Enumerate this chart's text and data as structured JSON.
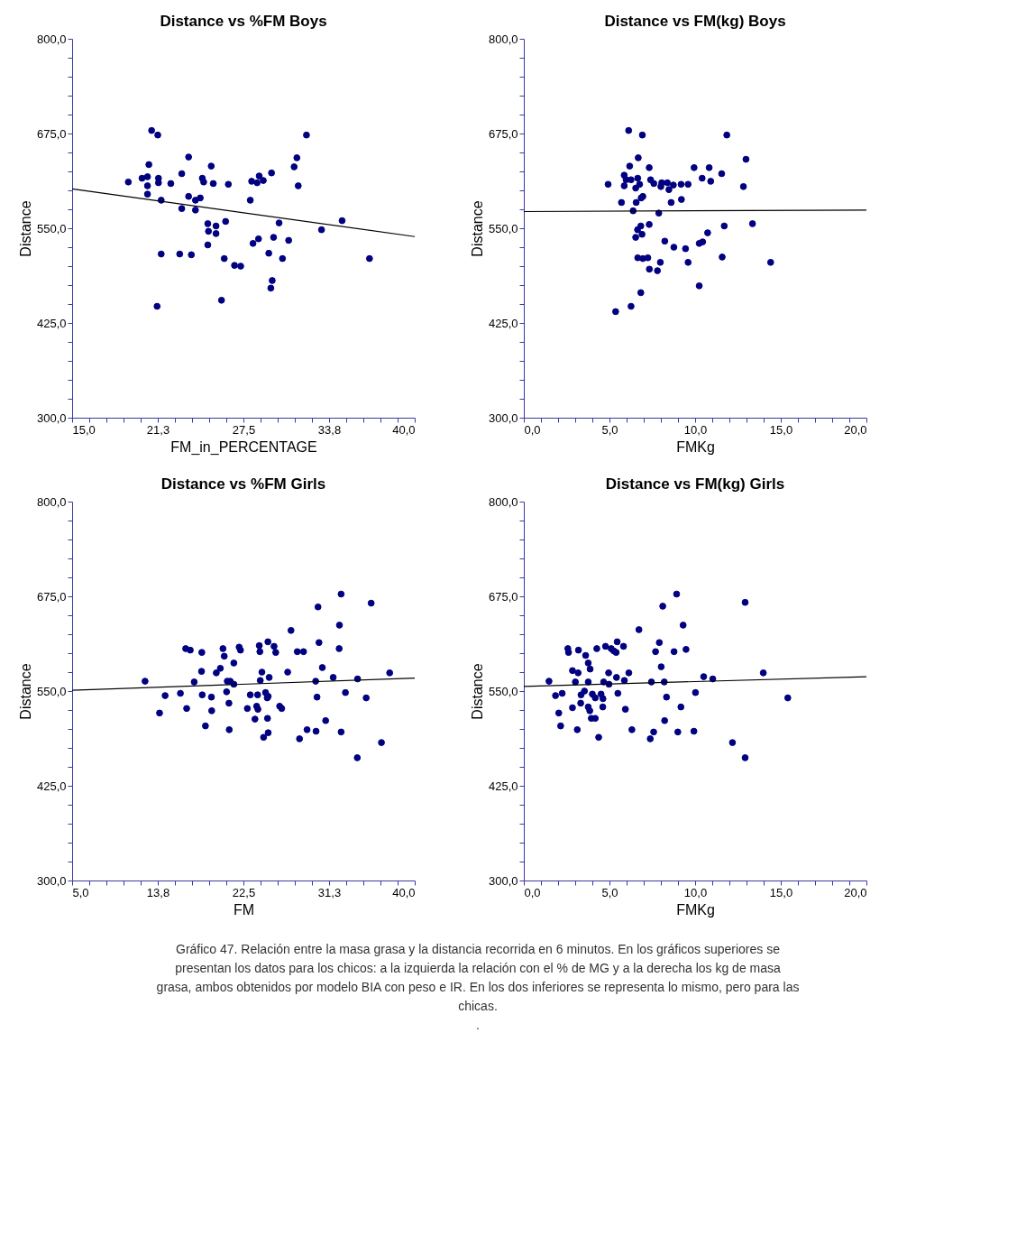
{
  "chart_data": [
    {
      "type": "scatter",
      "title": "Distance vs %FM Boys",
      "xlabel": "FM_in_PERCENTAGE",
      "ylabel": "Distance",
      "xlim": [
        15,
        40
      ],
      "ylim": [
        300,
        800
      ],
      "xticks": [
        {
          "value": 15,
          "label": "15,0"
        },
        {
          "value": 16.25,
          "label": null
        },
        {
          "value": 17.5,
          "label": null
        },
        {
          "value": 18.75,
          "label": null
        },
        {
          "value": 20,
          "label": null
        },
        {
          "value": 21.25,
          "label": "21,3"
        },
        {
          "value": 22.5,
          "label": null
        },
        {
          "value": 23.75,
          "label": null
        },
        {
          "value": 25,
          "label": null
        },
        {
          "value": 26.25,
          "label": null
        },
        {
          "value": 27.5,
          "label": "27,5"
        },
        {
          "value": 28.75,
          "label": null
        },
        {
          "value": 30,
          "label": null
        },
        {
          "value": 31.25,
          "label": null
        },
        {
          "value": 32.5,
          "label": null
        },
        {
          "value": 33.75,
          "label": "33,8"
        },
        {
          "value": 35,
          "label": null
        },
        {
          "value": 36.25,
          "label": null
        },
        {
          "value": 37.5,
          "label": null
        },
        {
          "value": 38.75,
          "label": null
        },
        {
          "value": 40,
          "label": "40,0"
        }
      ],
      "yticks": [
        {
          "value": 300,
          "label": "300,0"
        },
        {
          "value": 325,
          "label": null
        },
        {
          "value": 350,
          "label": null
        },
        {
          "value": 375,
          "label": null
        },
        {
          "value": 400,
          "label": null
        },
        {
          "value": 425,
          "label": "425,0"
        },
        {
          "value": 450,
          "label": null
        },
        {
          "value": 475,
          "label": null
        },
        {
          "value": 500,
          "label": null
        },
        {
          "value": 525,
          "label": null
        },
        {
          "value": 550,
          "label": "550,0"
        },
        {
          "value": 575,
          "label": null
        },
        {
          "value": 600,
          "label": null
        },
        {
          "value": 625,
          "label": null
        },
        {
          "value": 650,
          "label": null
        },
        {
          "value": 675,
          "label": "675,0"
        },
        {
          "value": 700,
          "label": null
        },
        {
          "value": 725,
          "label": null
        },
        {
          "value": 750,
          "label": null
        },
        {
          "value": 775,
          "label": null
        },
        {
          "value": 800,
          "label": "800,0"
        }
      ],
      "series": [
        {
          "marker": "circle",
          "color": "#000080",
          "x": [
            20.8,
            21.25,
            32.1,
            19.1,
            20.1,
            20.5,
            20.6,
            20.5,
            20.5,
            21.3,
            21.3,
            21.5,
            22.2,
            23.0,
            23.5,
            23.0,
            23.5,
            24.0,
            24.0,
            24.35,
            24.5,
            24.6,
            25.15,
            25.3,
            26.4,
            24.9,
            24.95,
            25.5,
            25.5,
            24.9,
            26.2,
            21.5,
            22.85,
            23.7,
            26.1,
            26.85,
            27.3,
            25.9,
            21.2,
            28.0,
            28.1,
            28.5,
            28.65,
            28.95,
            29.55,
            31.2,
            31.4,
            31.5,
            30.1,
            28.2,
            28.6,
            29.7,
            30.8,
            29.35,
            30.35,
            29.6,
            29.5,
            33.2,
            34.7,
            36.7
          ],
          "values": [
            679,
            673,
            673,
            611,
            616,
            618,
            634,
            606,
            595,
            616,
            610,
            587,
            609,
            622,
            644,
            576,
            592,
            574,
            587,
            590,
            616,
            611,
            632,
            609,
            608,
            556,
            546,
            553,
            543,
            528,
            559,
            516,
            516,
            515,
            510,
            501,
            500,
            455,
            447,
            587,
            612,
            610,
            619,
            613,
            623,
            631,
            643,
            606,
            557,
            530,
            536,
            538,
            534,
            517,
            510,
            481,
            471,
            548,
            560,
            510
          ]
        },
        {
          "type": "line",
          "color": "#000000",
          "x": [
            15,
            40
          ],
          "values": [
            602,
            539
          ]
        }
      ]
    },
    {
      "type": "scatter",
      "title": "Distance vs FM(kg) Boys",
      "xlabel": "FMKg",
      "ylabel": "Distance",
      "xlim": [
        0,
        20
      ],
      "ylim": [
        300,
        800
      ],
      "xticks": [
        {
          "value": 0,
          "label": "0,0"
        },
        {
          "value": 1,
          "label": null
        },
        {
          "value": 2,
          "label": null
        },
        {
          "value": 3,
          "label": null
        },
        {
          "value": 4,
          "label": null
        },
        {
          "value": 5,
          "label": "5,0"
        },
        {
          "value": 6,
          "label": null
        },
        {
          "value": 7,
          "label": null
        },
        {
          "value": 8,
          "label": null
        },
        {
          "value": 9,
          "label": null
        },
        {
          "value": 10,
          "label": "10,0"
        },
        {
          "value": 11,
          "label": null
        },
        {
          "value": 12,
          "label": null
        },
        {
          "value": 13,
          "label": null
        },
        {
          "value": 14,
          "label": null
        },
        {
          "value": 15,
          "label": "15,0"
        },
        {
          "value": 16,
          "label": null
        },
        {
          "value": 17,
          "label": null
        },
        {
          "value": 18,
          "label": null
        },
        {
          "value": 19,
          "label": null
        },
        {
          "value": 20,
          "label": "20,0"
        }
      ],
      "yticks": [
        {
          "value": 300,
          "label": "300,0"
        },
        {
          "value": 325,
          "label": null
        },
        {
          "value": 350,
          "label": null
        },
        {
          "value": 375,
          "label": null
        },
        {
          "value": 400,
          "label": null
        },
        {
          "value": 425,
          "label": "425,0"
        },
        {
          "value": 450,
          "label": null
        },
        {
          "value": 475,
          "label": null
        },
        {
          "value": 500,
          "label": null
        },
        {
          "value": 525,
          "label": null
        },
        {
          "value": 550,
          "label": "550,0"
        },
        {
          "value": 575,
          "label": null
        },
        {
          "value": 600,
          "label": null
        },
        {
          "value": 625,
          "label": null
        },
        {
          "value": 650,
          "label": null
        },
        {
          "value": 675,
          "label": "675,0"
        },
        {
          "value": 700,
          "label": null
        },
        {
          "value": 725,
          "label": null
        },
        {
          "value": 750,
          "label": null
        },
        {
          "value": 775,
          "label": null
        },
        {
          "value": 800,
          "label": "800,0"
        }
      ],
      "series": [
        {
          "marker": "circle",
          "color": "#000080",
          "x": [
            6.12,
            6.92,
            11.85,
            4.92,
            5.86,
            5.97,
            6.26,
            5.86,
            6.18,
            6.68,
            6.65,
            6.76,
            6.53,
            7.32,
            7.4,
            7.59,
            8.05,
            8.0,
            8.38,
            8.47,
            8.73,
            9.18,
            9.59,
            9.94,
            10.41,
            10.82,
            10.91,
            11.55,
            12.97,
            12.82,
            5.7,
            6.56,
            6.85,
            6.95,
            8.6,
            9.2,
            6.38,
            7.88,
            6.83,
            6.64,
            6.9,
            6.53,
            7.32,
            11.7,
            13.35,
            8.23,
            8.76,
            9.44,
            10.24,
            10.44,
            10.73,
            6.65,
            6.95,
            7.24,
            7.97,
            7.33,
            7.8,
            9.59,
            11.58,
            14.41,
            10.24,
            6.83,
            6.26,
            5.36
          ],
          "values": [
            679,
            673,
            673,
            608,
            620,
            614,
            614,
            606,
            632,
            643,
            616,
            608,
            603,
            630,
            614,
            609,
            610,
            605,
            610,
            601,
            607,
            608,
            608,
            630,
            616,
            630,
            612,
            622,
            641,
            605,
            584,
            584,
            590,
            592,
            584,
            588,
            573,
            570,
            553,
            548,
            542,
            538,
            555,
            553,
            556,
            533,
            525,
            523,
            530,
            532,
            544,
            511,
            510,
            511,
            505,
            496,
            494,
            505,
            512,
            505,
            474,
            465,
            447,
            440
          ]
        },
        {
          "type": "line",
          "color": "#000000",
          "x": [
            0,
            20
          ],
          "values": [
            572,
            574
          ]
        }
      ]
    },
    {
      "type": "scatter",
      "title": "Distance vs %FM Girls",
      "xlabel": "FM",
      "ylabel": "Distance",
      "xlim": [
        5,
        40
      ],
      "ylim": [
        300,
        800
      ],
      "xticks": [
        {
          "value": 5,
          "label": "5,0"
        },
        {
          "value": 6.75,
          "label": null
        },
        {
          "value": 8.5,
          "label": null
        },
        {
          "value": 10.25,
          "label": null
        },
        {
          "value": 12,
          "label": null
        },
        {
          "value": 13.75,
          "label": "13,8"
        },
        {
          "value": 15.5,
          "label": null
        },
        {
          "value": 17.25,
          "label": null
        },
        {
          "value": 19,
          "label": null
        },
        {
          "value": 20.75,
          "label": null
        },
        {
          "value": 22.5,
          "label": "22,5"
        },
        {
          "value": 24.25,
          "label": null
        },
        {
          "value": 26,
          "label": null
        },
        {
          "value": 27.75,
          "label": null
        },
        {
          "value": 29.5,
          "label": null
        },
        {
          "value": 31.25,
          "label": "31,3"
        },
        {
          "value": 33,
          "label": null
        },
        {
          "value": 34.75,
          "label": null
        },
        {
          "value": 36.5,
          "label": null
        },
        {
          "value": 38.25,
          "label": null
        },
        {
          "value": 40,
          "label": "40,0"
        }
      ],
      "yticks": [
        {
          "value": 300,
          "label": "300,0"
        },
        {
          "value": 325,
          "label": null
        },
        {
          "value": 350,
          "label": null
        },
        {
          "value": 375,
          "label": null
        },
        {
          "value": 400,
          "label": null
        },
        {
          "value": 425,
          "label": "425,0"
        },
        {
          "value": 450,
          "label": null
        },
        {
          "value": 475,
          "label": null
        },
        {
          "value": 500,
          "label": null
        },
        {
          "value": 525,
          "label": null
        },
        {
          "value": 550,
          "label": "550,0"
        },
        {
          "value": 575,
          "label": null
        },
        {
          "value": 600,
          "label": null
        },
        {
          "value": 625,
          "label": null
        },
        {
          "value": 650,
          "label": null
        },
        {
          "value": 675,
          "label": "675,0"
        },
        {
          "value": 700,
          "label": null
        },
        {
          "value": 725,
          "label": null
        },
        {
          "value": 750,
          "label": null
        },
        {
          "value": 775,
          "label": null
        },
        {
          "value": 800,
          "label": "800,0"
        }
      ],
      "series": [
        {
          "marker": "circle",
          "color": "#000080",
          "x": [
            12.45,
            13.93,
            14.5,
            16.06,
            16.7,
            16.6,
            17.07,
            17.47,
            18.25,
            18.22,
            18.29,
            18.62,
            19.23,
            19.26,
            19.73,
            20.14,
            20.41,
            20.54,
            20.78,
            20.85,
            21.02,
            21.05,
            21.15,
            21.52,
            21.52,
            22.06,
            22.2,
            22.9,
            23.2,
            23.68,
            23.85,
            23.98,
            23.95,
            24.12,
            24.18,
            24.22,
            24.39,
            24.76,
            24.93,
            25.03,
            24.96,
            25.03,
            24.56,
            25.0,
            25.13,
            25.63,
            25.8,
            26.2,
            26.41,
            27.02,
            27.36,
            28.0,
            28.64,
            28.23,
            29.0,
            29.92,
            29.88,
            30.02,
            30.12,
            30.22,
            30.56,
            30.9,
            31.67,
            32.28,
            32.31,
            32.48,
            32.48,
            32.92,
            34.16,
            34.13,
            35.04,
            35.55,
            36.6,
            37.44
          ],
          "values": [
            563,
            521,
            544,
            547,
            527,
            606,
            604,
            562,
            601,
            576,
            545,
            504,
            542,
            524,
            574,
            580,
            606,
            596,
            549,
            563,
            534,
            499,
            563,
            559,
            587,
            608,
            604,
            527,
            545,
            513,
            530,
            526,
            545,
            610,
            602,
            564,
            575,
            548,
            541,
            543,
            514,
            495,
            489,
            615,
            568,
            609,
            601,
            530,
            527,
            575,
            630,
            602,
            602,
            487,
            499,
            497,
            563,
            542,
            661,
            614,
            581,
            511,
            568,
            606,
            637,
            678,
            496,
            548,
            566,
            462,
            541,
            666,
            482,
            574
          ]
        },
        {
          "type": "line",
          "color": "#000000",
          "x": [
            5,
            40
          ],
          "values": [
            551,
            567
          ]
        }
      ]
    },
    {
      "type": "scatter",
      "title": "Distance vs FM(kg) Girls",
      "xlabel": "FMKg",
      "ylabel": "Distance",
      "xlim": [
        0,
        20
      ],
      "ylim": [
        300,
        800
      ],
      "xticks": [
        {
          "value": 0,
          "label": "0,0"
        },
        {
          "value": 1,
          "label": null
        },
        {
          "value": 2,
          "label": null
        },
        {
          "value": 3,
          "label": null
        },
        {
          "value": 4,
          "label": null
        },
        {
          "value": 5,
          "label": "5,0"
        },
        {
          "value": 6,
          "label": null
        },
        {
          "value": 7,
          "label": null
        },
        {
          "value": 8,
          "label": null
        },
        {
          "value": 9,
          "label": null
        },
        {
          "value": 10,
          "label": "10,0"
        },
        {
          "value": 11,
          "label": null
        },
        {
          "value": 12,
          "label": null
        },
        {
          "value": 13,
          "label": null
        },
        {
          "value": 14,
          "label": null
        },
        {
          "value": 15,
          "label": "15,0"
        },
        {
          "value": 16,
          "label": null
        },
        {
          "value": 17,
          "label": null
        },
        {
          "value": 18,
          "label": null
        },
        {
          "value": 19,
          "label": null
        },
        {
          "value": 20,
          "label": "20,0"
        }
      ],
      "yticks": [
        {
          "value": 300,
          "label": "300,0"
        },
        {
          "value": 325,
          "label": null
        },
        {
          "value": 350,
          "label": null
        },
        {
          "value": 375,
          "label": null
        },
        {
          "value": 400,
          "label": null
        },
        {
          "value": 425,
          "label": "425,0"
        },
        {
          "value": 450,
          "label": null
        },
        {
          "value": 475,
          "label": null
        },
        {
          "value": 500,
          "label": null
        },
        {
          "value": 525,
          "label": null
        },
        {
          "value": 550,
          "label": "550,0"
        },
        {
          "value": 575,
          "label": null
        },
        {
          "value": 600,
          "label": null
        },
        {
          "value": 625,
          "label": null
        },
        {
          "value": 650,
          "label": null
        },
        {
          "value": 675,
          "label": "675,0"
        },
        {
          "value": 700,
          "label": null
        },
        {
          "value": 725,
          "label": null
        },
        {
          "value": 750,
          "label": null
        },
        {
          "value": 775,
          "label": null
        },
        {
          "value": 800,
          "label": "800,0"
        }
      ],
      "series": [
        {
          "marker": "circle",
          "color": "#000080",
          "x": [
            1.47,
            1.85,
            2.24,
            2.04,
            2.15,
            2.57,
            2.61,
            2.84,
            2.84,
            3.01,
            3.12,
            3.17,
            3.19,
            3.34,
            3.32,
            3.54,
            3.61,
            3.76,
            3.76,
            3.76,
            3.87,
            3.85,
            3.94,
            4.17,
            4.0,
            4.17,
            4.26,
            4.37,
            4.51,
            4.62,
            4.61,
            4.66,
            4.77,
            4.95,
            4.97,
            5.1,
            5.25,
            5.39,
            5.45,
            5.41,
            5.49,
            5.82,
            5.87,
            5.93,
            6.13,
            6.31,
            6.72,
            7.38,
            7.45,
            7.58,
            7.69,
            7.91,
            8.02,
            8.11,
            8.2,
            8.33,
            8.22,
            8.77,
            8.92,
            8.99,
            9.17,
            9.3,
            9.47,
            9.93,
            10.02,
            10.5,
            11.03,
            12.18,
            12.92,
            12.92,
            13.98,
            15.41
          ],
          "values": [
            563,
            544,
            547,
            521,
            504,
            606,
            601,
            577,
            528,
            562,
            499,
            574,
            604,
            545,
            534,
            550,
            597,
            587,
            562,
            529,
            579,
            524,
            514,
            514,
            546,
            541,
            606,
            489,
            546,
            540,
            529,
            562,
            609,
            574,
            559,
            606,
            603,
            601,
            615,
            568,
            547,
            609,
            564,
            526,
            574,
            499,
            631,
            487,
            562,
            496,
            602,
            614,
            582,
            662,
            562,
            542,
            511,
            602,
            678,
            496,
            529,
            637,
            605,
            497,
            548,
            569,
            566,
            482,
            667,
            462,
            574,
            541
          ]
        },
        {
          "type": "line",
          "color": "#000000",
          "x": [
            0,
            20
          ],
          "values": [
            556,
            569
          ]
        }
      ],
      "annotations": [
        "Gráfico 47. Relación entre la masa grasa y la distancia recorrida en 6 minutos. En los gráficos superiores se presentan los datos para los chicos: a la izquierda la relación con el % de MG y a la derecha los kg de masa grasa, ambos obtenidos por modelo BIA con peso e IR. En los dos inferiores se representa lo mismo, pero para las chicas.",
        "."
      ]
    }
  ]
}
